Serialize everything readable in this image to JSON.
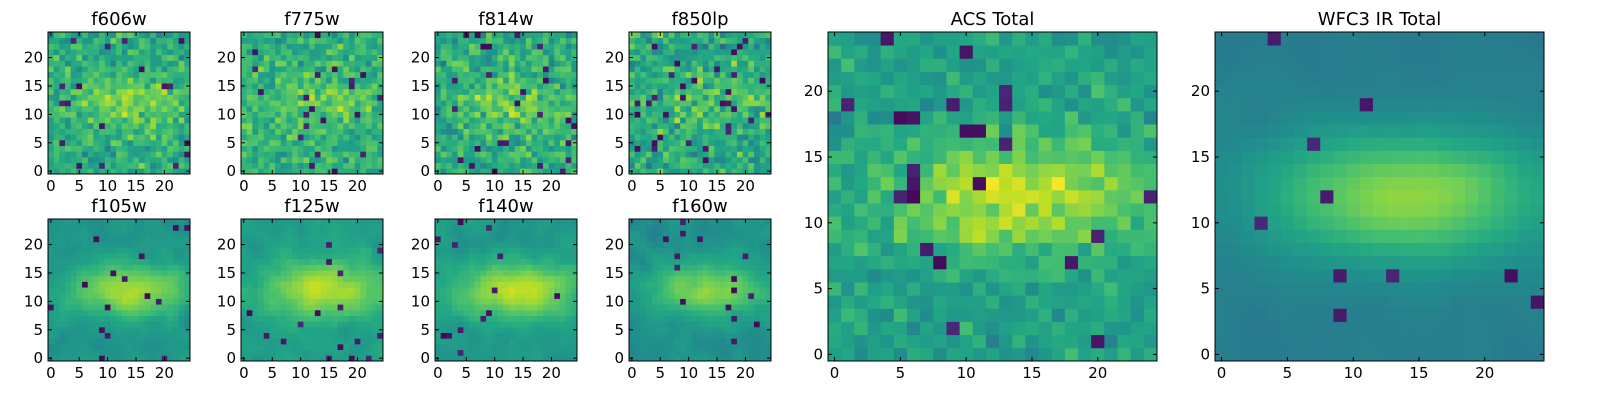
{
  "chart_data": [
    {
      "type": "heatmap",
      "title": "f606w",
      "xticks": [
        0,
        5,
        10,
        15,
        20
      ],
      "yticks": [
        0,
        5,
        10,
        15,
        20
      ],
      "xlim": [
        -0.5,
        24.5
      ],
      "ylim": [
        -0.5,
        24.5
      ],
      "grid_size": [
        25,
        25
      ],
      "colormap": "viridis",
      "pattern": "noisy, weak central band"
    },
    {
      "type": "heatmap",
      "title": "f775w",
      "xticks": [
        0,
        5,
        10,
        15,
        20
      ],
      "yticks": [
        0,
        5,
        10,
        15,
        20
      ],
      "xlim": [
        -0.5,
        24.5
      ],
      "ylim": [
        -0.5,
        24.5
      ],
      "grid_size": [
        25,
        25
      ],
      "colormap": "viridis",
      "pattern": "noisy"
    },
    {
      "type": "heatmap",
      "title": "f814w",
      "xticks": [
        0,
        5,
        10,
        15,
        20
      ],
      "yticks": [
        0,
        5,
        10,
        15,
        20
      ],
      "xlim": [
        -0.5,
        24.5
      ],
      "ylim": [
        -0.5,
        24.5
      ],
      "grid_size": [
        25,
        25
      ],
      "colormap": "viridis",
      "pattern": "noisy, weak central band"
    },
    {
      "type": "heatmap",
      "title": "f850lp",
      "xticks": [
        0,
        5,
        10,
        15,
        20
      ],
      "yticks": [
        0,
        5,
        10,
        15,
        20
      ],
      "xlim": [
        -0.5,
        24.5
      ],
      "ylim": [
        -0.5,
        24.5
      ],
      "grid_size": [
        25,
        25
      ],
      "colormap": "viridis",
      "pattern": "noisy"
    },
    {
      "type": "heatmap",
      "title": "f105w",
      "xticks": [
        0,
        5,
        10,
        15,
        20
      ],
      "yticks": [
        0,
        5,
        10,
        15,
        20
      ],
      "xlim": [
        -0.5,
        24.5
      ],
      "ylim": [
        -0.5,
        24.5
      ],
      "grid_size": [
        25,
        25
      ],
      "colormap": "viridis",
      "pattern": "smooth central bright band"
    },
    {
      "type": "heatmap",
      "title": "f125w",
      "xticks": [
        0,
        5,
        10,
        15,
        20
      ],
      "yticks": [
        0,
        5,
        10,
        15,
        20
      ],
      "xlim": [
        -0.5,
        24.5
      ],
      "ylim": [
        -0.5,
        24.5
      ],
      "grid_size": [
        25,
        25
      ],
      "colormap": "viridis",
      "pattern": "smooth central bright band"
    },
    {
      "type": "heatmap",
      "title": "f140w",
      "xticks": [
        0,
        5,
        10,
        15,
        20
      ],
      "yticks": [
        0,
        5,
        10,
        15,
        20
      ],
      "xlim": [
        -0.5,
        24.5
      ],
      "ylim": [
        -0.5,
        24.5
      ],
      "grid_size": [
        25,
        25
      ],
      "colormap": "viridis",
      "pattern": "smooth central bright band"
    },
    {
      "type": "heatmap",
      "title": "f160w",
      "xticks": [
        0,
        5,
        10,
        15,
        20
      ],
      "yticks": [
        0,
        5,
        10,
        15,
        20
      ],
      "xlim": [
        -0.5,
        24.5
      ],
      "ylim": [
        -0.5,
        24.5
      ],
      "grid_size": [
        25,
        25
      ],
      "colormap": "viridis",
      "pattern": "smooth central bright band"
    },
    {
      "type": "heatmap",
      "title": "ACS Total",
      "xticks": [
        0,
        5,
        10,
        15,
        20
      ],
      "yticks": [
        0,
        5,
        10,
        15,
        20
      ],
      "xlim": [
        -0.5,
        24.5
      ],
      "ylim": [
        -0.5,
        24.5
      ],
      "grid_size": [
        25,
        25
      ],
      "colormap": "viridis",
      "pattern": "noisy, bright central region"
    },
    {
      "type": "heatmap",
      "title": "WFC3 IR Total",
      "xticks": [
        0,
        5,
        10,
        15,
        20
      ],
      "yticks": [
        0,
        5,
        10,
        15,
        20
      ],
      "xlim": [
        -0.5,
        24.5
      ],
      "ylim": [
        -0.5,
        24.5
      ],
      "grid_size": [
        25,
        25
      ],
      "colormap": "viridis",
      "pattern": "smooth, bright horizontal band near y=12"
    }
  ]
}
